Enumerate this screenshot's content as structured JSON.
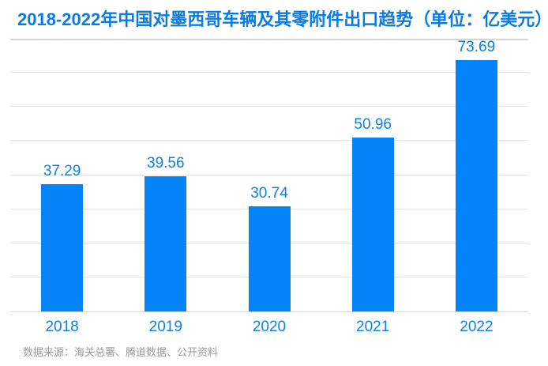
{
  "header": {
    "title": "2018-2022年中国对墨西哥车辆及其零附件出口趋势（单位：亿美元）"
  },
  "footer": {
    "source": "数据来源：海关总署、腾道数据、公开资料"
  },
  "colors": {
    "bar": "#0584fa",
    "title_blue": "#0a7be4",
    "label_blue": "#0d80e8",
    "gridline": "#e4e4e4",
    "baseline": "#d8d8d8",
    "divider": "#d5d5d5",
    "source_gray": "#9a9a9a",
    "background": "#ffffff"
  },
  "chart_data": {
    "type": "bar",
    "title": "2018-2022年中国对墨西哥车辆及其零附件出口趋势",
    "unit": "亿美元",
    "categories": [
      "2018",
      "2019",
      "2020",
      "2021",
      "2022"
    ],
    "values": [
      37.29,
      39.56,
      30.74,
      50.96,
      73.69
    ],
    "value_labels": [
      "37.29",
      "39.56",
      "30.74",
      "50.96",
      "73.69"
    ],
    "xlabel": "",
    "ylabel": "",
    "ylim": [
      0,
      80
    ],
    "gridline_values": [
      0,
      10,
      20,
      30,
      40,
      50,
      60,
      70
    ],
    "grid": "horizontal",
    "legend_position": "none",
    "data_labels_shown": true,
    "y_axis_tick_labels_shown": false,
    "source": "数据来源：海关总署、腾道数据、公开资料"
  }
}
